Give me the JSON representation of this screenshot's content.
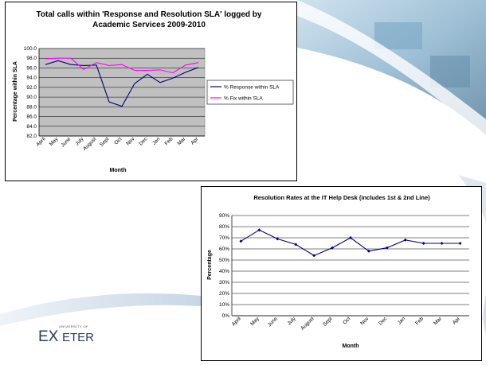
{
  "chart_data": [
    {
      "type": "line",
      "title": "Total calls within 'Response and Resolution SLA' logged by Academic Services 2009-2010",
      "title_lines": [
        "Total calls within 'Response and Resolution SLA' logged by",
        "Academic Services 2009-2010"
      ],
      "xlabel": "Month",
      "ylabel": "Percentage within SLA",
      "categories": [
        "April",
        "May",
        "June",
        "July",
        "August",
        "Sept",
        "Oct",
        "Nov",
        "Dec",
        "Jan",
        "Feb",
        "Mar",
        "Apr"
      ],
      "ylim": [
        82.0,
        100.0
      ],
      "yticks": [
        "82.0",
        "84.0",
        "86.0",
        "88.0",
        "90.0",
        "92.0",
        "94.0",
        "96.0",
        "98.0",
        "100.0"
      ],
      "grid": true,
      "legend": "right",
      "plot_bg": "#c0c0c0",
      "series": [
        {
          "name": "% Response within SLA",
          "color": "#000080",
          "values": [
            96.7,
            97.5,
            96.7,
            96.5,
            96.6,
            89.0,
            88.1,
            92.8,
            94.7,
            93.0,
            93.9,
            95.1,
            96.1
          ]
        },
        {
          "name": "% Fix within SLA",
          "color": "#ff00ff",
          "values": [
            97.9,
            98.0,
            98.0,
            95.7,
            97.1,
            96.5,
            96.7,
            95.5,
            95.5,
            95.6,
            95.0,
            96.6,
            97.1
          ]
        }
      ]
    },
    {
      "type": "line",
      "title": "Resolution Rates at the IT Help Desk (includes 1st & 2nd Line)",
      "xlabel": "Month",
      "ylabel": "Percentage",
      "categories": [
        "April",
        "May",
        "June",
        "July",
        "August",
        "Sept",
        "Oct",
        "Nov",
        "Dec",
        "Jan",
        "Feb",
        "Mar",
        "Apr"
      ],
      "ylim": [
        0,
        90
      ],
      "yticks": [
        "0%",
        "10%",
        "20%",
        "30%",
        "40%",
        "50%",
        "60%",
        "70%",
        "80%",
        "90%"
      ],
      "grid": true,
      "plot_bg": "#ffffff",
      "series": [
        {
          "color": "#000080",
          "values": [
            67,
            77,
            69,
            64,
            54,
            61,
            70,
            58,
            61,
            68,
            65,
            65,
            65
          ]
        }
      ]
    }
  ],
  "logo": {
    "small": "UNIVERSITY OF",
    "big_left": "EX",
    "big_right": "ETER"
  }
}
